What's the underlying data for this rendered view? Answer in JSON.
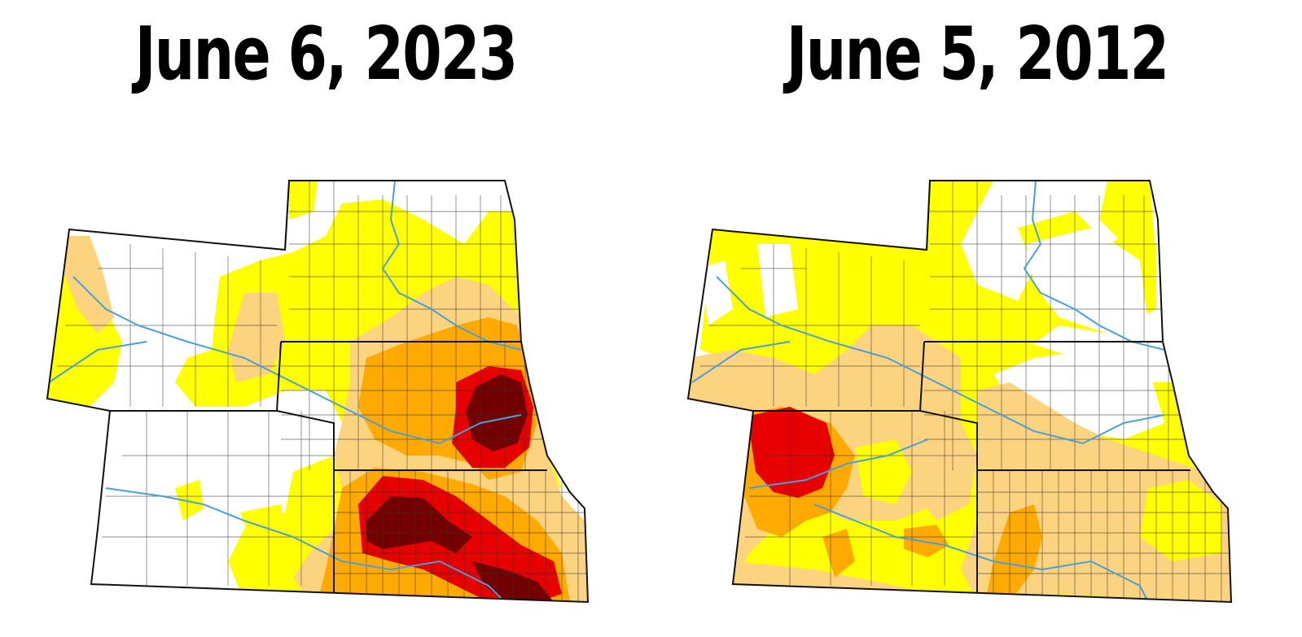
{
  "panels": [
    {
      "title": "June 6, 2023"
    },
    {
      "title": "June 5, 2012"
    }
  ],
  "colors": {
    "none": "#ffffff",
    "D0": "#ffff00",
    "D1": "#fcd37f",
    "D2": "#ffaa00",
    "D3": "#e60000",
    "D4": "#730000",
    "border": "#222222",
    "river": "#4a9fd8"
  }
}
